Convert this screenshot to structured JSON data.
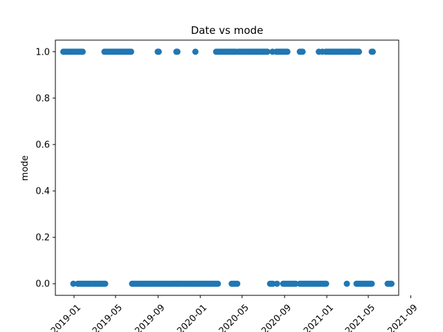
{
  "chart_data": {
    "type": "scatter",
    "title": "Date vs mode",
    "xlabel": "",
    "ylabel": "mode",
    "x_axis": "date",
    "xlim": [
      "2018-11-08",
      "2021-07-28"
    ],
    "ylim": [
      -0.05,
      1.05
    ],
    "grid": false,
    "legend": "none",
    "marker_color": "#1f77b4",
    "x_ticks": [
      "2019-01",
      "2019-05",
      "2019-09",
      "2020-01",
      "2020-05",
      "2020-09",
      "2021-01",
      "2021-05",
      "2021-09"
    ],
    "x_tick_dates": [
      "2019-01-01",
      "2019-05-01",
      "2019-09-01",
      "2020-01-01",
      "2020-05-01",
      "2020-09-01",
      "2021-01-01",
      "2021-05-01",
      "2021-09-01"
    ],
    "y_ticks": [
      "0.0",
      "0.2",
      "0.4",
      "0.6",
      "0.8",
      "1.0"
    ],
    "y_tick_values": [
      0.0,
      0.2,
      0.4,
      0.6,
      0.8,
      1.0
    ],
    "points": [
      {
        "x": "2018-12-01",
        "y": 1
      },
      {
        "x": "2018-12-05",
        "y": 1
      },
      {
        "x": "2018-12-09",
        "y": 1
      },
      {
        "x": "2018-12-13",
        "y": 1
      },
      {
        "x": "2018-12-17",
        "y": 1
      },
      {
        "x": "2018-12-21",
        "y": 1
      },
      {
        "x": "2018-12-25",
        "y": 1
      },
      {
        "x": "2018-12-29",
        "y": 1
      },
      {
        "x": "2019-01-02",
        "y": 1
      },
      {
        "x": "2019-01-06",
        "y": 1
      },
      {
        "x": "2019-01-10",
        "y": 1
      },
      {
        "x": "2019-01-14",
        "y": 1
      },
      {
        "x": "2019-01-18",
        "y": 1
      },
      {
        "x": "2019-01-22",
        "y": 1
      },
      {
        "x": "2019-01-26",
        "y": 1
      },
      {
        "x": "2019-03-30",
        "y": 1
      },
      {
        "x": "2019-04-04",
        "y": 1
      },
      {
        "x": "2019-04-08",
        "y": 1
      },
      {
        "x": "2019-04-12",
        "y": 1
      },
      {
        "x": "2019-04-16",
        "y": 1
      },
      {
        "x": "2019-04-20",
        "y": 1
      },
      {
        "x": "2019-04-24",
        "y": 1
      },
      {
        "x": "2019-04-28",
        "y": 1
      },
      {
        "x": "2019-05-02",
        "y": 1
      },
      {
        "x": "2019-05-06",
        "y": 1
      },
      {
        "x": "2019-05-10",
        "y": 1
      },
      {
        "x": "2019-05-14",
        "y": 1
      },
      {
        "x": "2019-05-18",
        "y": 1
      },
      {
        "x": "2019-05-22",
        "y": 1
      },
      {
        "x": "2019-05-26",
        "y": 1
      },
      {
        "x": "2019-05-30",
        "y": 1
      },
      {
        "x": "2019-06-03",
        "y": 1
      },
      {
        "x": "2019-06-07",
        "y": 1
      },
      {
        "x": "2019-06-11",
        "y": 1
      },
      {
        "x": "2019-06-15",
        "y": 1
      },
      {
        "x": "2019-08-31",
        "y": 1
      },
      {
        "x": "2019-09-03",
        "y": 1
      },
      {
        "x": "2019-10-24",
        "y": 1
      },
      {
        "x": "2019-10-27",
        "y": 1
      },
      {
        "x": "2019-12-18",
        "y": 1
      },
      {
        "x": "2020-02-16",
        "y": 1
      },
      {
        "x": "2020-02-20",
        "y": 1
      },
      {
        "x": "2020-02-24",
        "y": 1
      },
      {
        "x": "2020-02-28",
        "y": 1
      },
      {
        "x": "2020-03-03",
        "y": 1
      },
      {
        "x": "2020-03-07",
        "y": 1
      },
      {
        "x": "2020-03-11",
        "y": 1
      },
      {
        "x": "2020-03-15",
        "y": 1
      },
      {
        "x": "2020-03-19",
        "y": 1
      },
      {
        "x": "2020-03-23",
        "y": 1
      },
      {
        "x": "2020-03-27",
        "y": 1
      },
      {
        "x": "2020-03-31",
        "y": 1
      },
      {
        "x": "2020-04-04",
        "y": 1
      },
      {
        "x": "2020-04-08",
        "y": 1
      },
      {
        "x": "2020-04-12",
        "y": 1
      },
      {
        "x": "2020-04-20",
        "y": 1
      },
      {
        "x": "2020-04-24",
        "y": 1
      },
      {
        "x": "2020-04-28",
        "y": 1
      },
      {
        "x": "2020-05-02",
        "y": 1
      },
      {
        "x": "2020-05-06",
        "y": 1
      },
      {
        "x": "2020-05-10",
        "y": 1
      },
      {
        "x": "2020-05-14",
        "y": 1
      },
      {
        "x": "2020-05-18",
        "y": 1
      },
      {
        "x": "2020-05-22",
        "y": 1
      },
      {
        "x": "2020-05-26",
        "y": 1
      },
      {
        "x": "2020-05-30",
        "y": 1
      },
      {
        "x": "2020-06-03",
        "y": 1
      },
      {
        "x": "2020-06-07",
        "y": 1
      },
      {
        "x": "2020-06-11",
        "y": 1
      },
      {
        "x": "2020-06-15",
        "y": 1
      },
      {
        "x": "2020-06-19",
        "y": 1
      },
      {
        "x": "2020-06-23",
        "y": 1
      },
      {
        "x": "2020-06-27",
        "y": 1
      },
      {
        "x": "2020-07-01",
        "y": 1
      },
      {
        "x": "2020-07-05",
        "y": 1
      },
      {
        "x": "2020-07-09",
        "y": 1
      },
      {
        "x": "2020-07-13",
        "y": 1
      },
      {
        "x": "2020-07-28",
        "y": 1
      },
      {
        "x": "2020-08-08",
        "y": 1
      },
      {
        "x": "2020-08-12",
        "y": 1
      },
      {
        "x": "2020-08-16",
        "y": 1
      },
      {
        "x": "2020-08-20",
        "y": 1
      },
      {
        "x": "2020-08-24",
        "y": 1
      },
      {
        "x": "2020-08-28",
        "y": 1
      },
      {
        "x": "2020-09-01",
        "y": 1
      },
      {
        "x": "2020-09-05",
        "y": 1
      },
      {
        "x": "2020-09-09",
        "y": 1
      },
      {
        "x": "2020-10-15",
        "y": 1
      },
      {
        "x": "2020-10-19",
        "y": 1
      },
      {
        "x": "2020-10-23",
        "y": 1
      },
      {
        "x": "2020-12-09",
        "y": 1
      },
      {
        "x": "2020-12-19",
        "y": 1
      },
      {
        "x": "2020-12-29",
        "y": 1
      },
      {
        "x": "2021-01-02",
        "y": 1
      },
      {
        "x": "2021-01-06",
        "y": 1
      },
      {
        "x": "2021-01-10",
        "y": 1
      },
      {
        "x": "2021-01-14",
        "y": 1
      },
      {
        "x": "2021-01-18",
        "y": 1
      },
      {
        "x": "2021-01-22",
        "y": 1
      },
      {
        "x": "2021-01-26",
        "y": 1
      },
      {
        "x": "2021-01-30",
        "y": 1
      },
      {
        "x": "2021-02-03",
        "y": 1
      },
      {
        "x": "2021-02-07",
        "y": 1
      },
      {
        "x": "2021-02-11",
        "y": 1
      },
      {
        "x": "2021-02-15",
        "y": 1
      },
      {
        "x": "2021-02-19",
        "y": 1
      },
      {
        "x": "2021-02-23",
        "y": 1
      },
      {
        "x": "2021-02-27",
        "y": 1
      },
      {
        "x": "2021-03-03",
        "y": 1
      },
      {
        "x": "2021-03-07",
        "y": 1
      },
      {
        "x": "2021-03-11",
        "y": 1
      },
      {
        "x": "2021-03-15",
        "y": 1
      },
      {
        "x": "2021-03-19",
        "y": 1
      },
      {
        "x": "2021-03-23",
        "y": 1
      },
      {
        "x": "2021-03-27",
        "y": 1
      },
      {
        "x": "2021-03-31",
        "y": 1
      },
      {
        "x": "2021-04-04",
        "y": 1
      },
      {
        "x": "2021-05-11",
        "y": 1
      },
      {
        "x": "2021-05-14",
        "y": 1
      },
      {
        "x": "2018-12-30",
        "y": 0
      },
      {
        "x": "2019-01-12",
        "y": 0
      },
      {
        "x": "2019-01-16",
        "y": 0
      },
      {
        "x": "2019-01-20",
        "y": 0
      },
      {
        "x": "2019-01-24",
        "y": 0
      },
      {
        "x": "2019-01-28",
        "y": 0
      },
      {
        "x": "2019-02-01",
        "y": 0
      },
      {
        "x": "2019-02-05",
        "y": 0
      },
      {
        "x": "2019-02-09",
        "y": 0
      },
      {
        "x": "2019-02-13",
        "y": 0
      },
      {
        "x": "2019-02-17",
        "y": 0
      },
      {
        "x": "2019-02-21",
        "y": 0
      },
      {
        "x": "2019-02-25",
        "y": 0
      },
      {
        "x": "2019-03-01",
        "y": 0
      },
      {
        "x": "2019-03-05",
        "y": 0
      },
      {
        "x": "2019-03-09",
        "y": 0
      },
      {
        "x": "2019-03-13",
        "y": 0
      },
      {
        "x": "2019-03-17",
        "y": 0
      },
      {
        "x": "2019-03-21",
        "y": 0
      },
      {
        "x": "2019-03-25",
        "y": 0
      },
      {
        "x": "2019-03-29",
        "y": 0
      },
      {
        "x": "2019-04-01",
        "y": 0
      },
      {
        "x": "2019-06-18",
        "y": 0
      },
      {
        "x": "2019-06-22",
        "y": 0
      },
      {
        "x": "2019-06-26",
        "y": 0
      },
      {
        "x": "2019-06-30",
        "y": 0
      },
      {
        "x": "2019-07-04",
        "y": 0
      },
      {
        "x": "2019-07-08",
        "y": 0
      },
      {
        "x": "2019-07-12",
        "y": 0
      },
      {
        "x": "2019-07-16",
        "y": 0
      },
      {
        "x": "2019-07-20",
        "y": 0
      },
      {
        "x": "2019-07-24",
        "y": 0
      },
      {
        "x": "2019-07-28",
        "y": 0
      },
      {
        "x": "2019-08-01",
        "y": 0
      },
      {
        "x": "2019-08-05",
        "y": 0
      },
      {
        "x": "2019-08-09",
        "y": 0
      },
      {
        "x": "2019-08-13",
        "y": 0
      },
      {
        "x": "2019-08-17",
        "y": 0
      },
      {
        "x": "2019-08-21",
        "y": 0
      },
      {
        "x": "2019-08-25",
        "y": 0
      },
      {
        "x": "2019-08-29",
        "y": 0
      },
      {
        "x": "2019-09-02",
        "y": 0
      },
      {
        "x": "2019-09-06",
        "y": 0
      },
      {
        "x": "2019-09-10",
        "y": 0
      },
      {
        "x": "2019-09-14",
        "y": 0
      },
      {
        "x": "2019-09-18",
        "y": 0
      },
      {
        "x": "2019-09-22",
        "y": 0
      },
      {
        "x": "2019-09-26",
        "y": 0
      },
      {
        "x": "2019-09-30",
        "y": 0
      },
      {
        "x": "2019-10-04",
        "y": 0
      },
      {
        "x": "2019-10-08",
        "y": 0
      },
      {
        "x": "2019-10-12",
        "y": 0
      },
      {
        "x": "2019-10-16",
        "y": 0
      },
      {
        "x": "2019-10-20",
        "y": 0
      },
      {
        "x": "2019-10-24",
        "y": 0
      },
      {
        "x": "2019-10-28",
        "y": 0
      },
      {
        "x": "2019-11-01",
        "y": 0
      },
      {
        "x": "2019-11-05",
        "y": 0
      },
      {
        "x": "2019-11-09",
        "y": 0
      },
      {
        "x": "2019-11-13",
        "y": 0
      },
      {
        "x": "2019-11-17",
        "y": 0
      },
      {
        "x": "2019-11-21",
        "y": 0
      },
      {
        "x": "2019-11-25",
        "y": 0
      },
      {
        "x": "2019-11-29",
        "y": 0
      },
      {
        "x": "2019-12-03",
        "y": 0
      },
      {
        "x": "2019-12-07",
        "y": 0
      },
      {
        "x": "2019-12-11",
        "y": 0
      },
      {
        "x": "2019-12-15",
        "y": 0
      },
      {
        "x": "2019-12-19",
        "y": 0
      },
      {
        "x": "2019-12-23",
        "y": 0
      },
      {
        "x": "2019-12-27",
        "y": 0
      },
      {
        "x": "2019-12-31",
        "y": 0
      },
      {
        "x": "2020-01-04",
        "y": 0
      },
      {
        "x": "2020-01-08",
        "y": 0
      },
      {
        "x": "2020-01-12",
        "y": 0
      },
      {
        "x": "2020-01-16",
        "y": 0
      },
      {
        "x": "2020-01-20",
        "y": 0
      },
      {
        "x": "2020-01-24",
        "y": 0
      },
      {
        "x": "2020-01-28",
        "y": 0
      },
      {
        "x": "2020-02-01",
        "y": 0
      },
      {
        "x": "2020-02-05",
        "y": 0
      },
      {
        "x": "2020-02-09",
        "y": 0
      },
      {
        "x": "2020-02-13",
        "y": 0
      },
      {
        "x": "2020-02-17",
        "y": 0
      },
      {
        "x": "2020-02-21",
        "y": 0
      },
      {
        "x": "2020-04-01",
        "y": 0
      },
      {
        "x": "2020-04-05",
        "y": 0
      },
      {
        "x": "2020-04-09",
        "y": 0
      },
      {
        "x": "2020-04-13",
        "y": 0
      },
      {
        "x": "2020-04-17",
        "y": 0
      },
      {
        "x": "2020-07-21",
        "y": 0
      },
      {
        "x": "2020-07-25",
        "y": 0
      },
      {
        "x": "2020-07-29",
        "y": 0
      },
      {
        "x": "2020-08-10",
        "y": 0
      },
      {
        "x": "2020-08-28",
        "y": 0
      },
      {
        "x": "2020-09-01",
        "y": 0
      },
      {
        "x": "2020-09-05",
        "y": 0
      },
      {
        "x": "2020-09-09",
        "y": 0
      },
      {
        "x": "2020-09-13",
        "y": 0
      },
      {
        "x": "2020-09-17",
        "y": 0
      },
      {
        "x": "2020-09-21",
        "y": 0
      },
      {
        "x": "2020-09-25",
        "y": 0
      },
      {
        "x": "2020-09-29",
        "y": 0
      },
      {
        "x": "2020-10-03",
        "y": 0
      },
      {
        "x": "2020-10-15",
        "y": 0
      },
      {
        "x": "2020-10-19",
        "y": 0
      },
      {
        "x": "2020-10-23",
        "y": 0
      },
      {
        "x": "2020-10-27",
        "y": 0
      },
      {
        "x": "2020-10-31",
        "y": 0
      },
      {
        "x": "2020-11-04",
        "y": 0
      },
      {
        "x": "2020-11-08",
        "y": 0
      },
      {
        "x": "2020-11-12",
        "y": 0
      },
      {
        "x": "2020-11-16",
        "y": 0
      },
      {
        "x": "2020-11-20",
        "y": 0
      },
      {
        "x": "2020-11-24",
        "y": 0
      },
      {
        "x": "2020-11-28",
        "y": 0
      },
      {
        "x": "2020-12-02",
        "y": 0
      },
      {
        "x": "2020-12-06",
        "y": 0
      },
      {
        "x": "2020-12-10",
        "y": 0
      },
      {
        "x": "2020-12-14",
        "y": 0
      },
      {
        "x": "2020-12-18",
        "y": 0
      },
      {
        "x": "2020-12-22",
        "y": 0
      },
      {
        "x": "2020-12-26",
        "y": 0
      },
      {
        "x": "2020-12-30",
        "y": 0
      },
      {
        "x": "2021-02-28",
        "y": 0
      },
      {
        "x": "2021-03-28",
        "y": 0
      },
      {
        "x": "2021-04-01",
        "y": 0
      },
      {
        "x": "2021-04-05",
        "y": 0
      },
      {
        "x": "2021-04-09",
        "y": 0
      },
      {
        "x": "2021-04-13",
        "y": 0
      },
      {
        "x": "2021-04-17",
        "y": 0
      },
      {
        "x": "2021-04-21",
        "y": 0
      },
      {
        "x": "2021-04-25",
        "y": 0
      },
      {
        "x": "2021-04-29",
        "y": 0
      },
      {
        "x": "2021-05-03",
        "y": 0
      },
      {
        "x": "2021-05-07",
        "y": 0
      },
      {
        "x": "2021-05-11",
        "y": 0
      },
      {
        "x": "2021-06-26",
        "y": 0
      },
      {
        "x": "2021-06-30",
        "y": 0
      },
      {
        "x": "2021-07-04",
        "y": 0
      },
      {
        "x": "2021-07-07",
        "y": 0
      }
    ]
  }
}
